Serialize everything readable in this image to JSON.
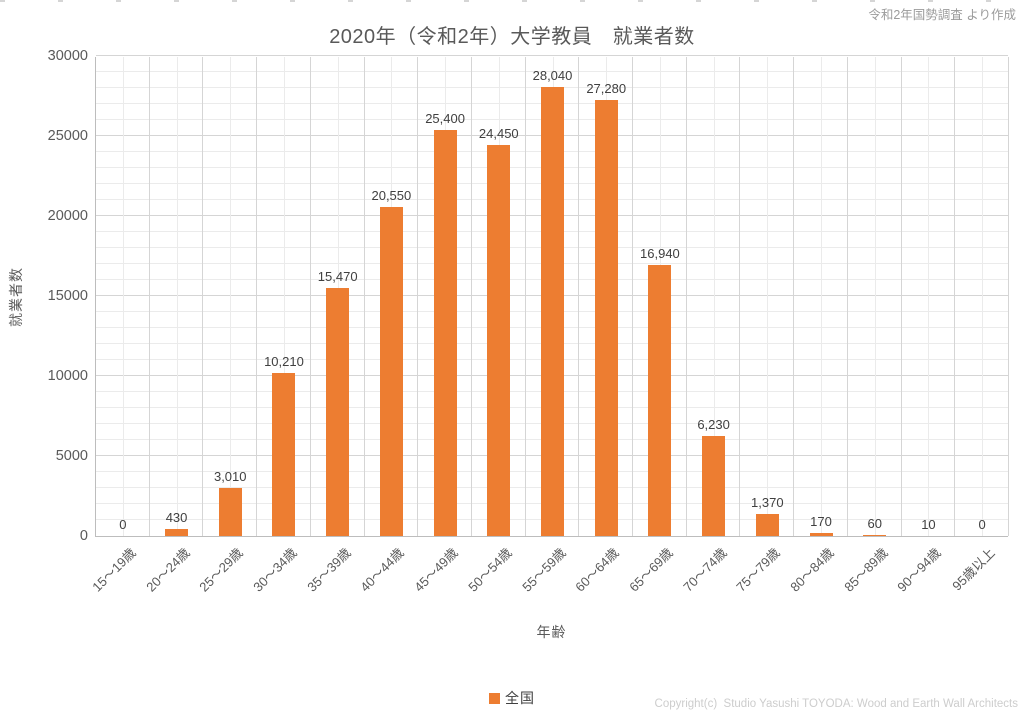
{
  "page": {
    "source_note": "令和2年国勢調査 より作成",
    "copyright": "Copyright(c)  Studio Yasushi TOYODA: Wood and Earth Wall Architects"
  },
  "chart_data": {
    "type": "bar",
    "title": "2020年（令和2年）大学教員　就業者数",
    "xlabel": "年齢",
    "ylabel": "就業者数",
    "legend": {
      "position": "bottom-center",
      "series_label": "全国"
    },
    "categories": [
      "15～19歳",
      "20～24歳",
      "25～29歳",
      "30～34歳",
      "35～39歳",
      "40～44歳",
      "45～49歳",
      "50～54歳",
      "55～59歳",
      "60～64歳",
      "65～69歳",
      "70～74歳",
      "75～79歳",
      "80～84歳",
      "85～89歳",
      "90～94歳",
      "95歳以上"
    ],
    "values": [
      0,
      430,
      3010,
      10210,
      15470,
      20550,
      25400,
      24450,
      28040,
      27280,
      16940,
      6230,
      1370,
      170,
      60,
      10,
      0
    ],
    "value_labels": [
      "0",
      "430",
      "3,010",
      "10,210",
      "15,470",
      "20,550",
      "25,400",
      "24,450",
      "28,040",
      "27,280",
      "16,940",
      "6,230",
      "1,370",
      "170",
      "60",
      "10",
      "0"
    ],
    "ylim": [
      0,
      30000
    ],
    "y_major_unit": 5000,
    "y_minor_unit": 1000,
    "y_tick_labels": [
      "0",
      "5000",
      "10000",
      "15000",
      "20000",
      "25000",
      "30000"
    ],
    "grid": "horizontal and vertical, major + minor",
    "colors": {
      "bar": "#ED7D31",
      "grid_major": "#D5D5D5",
      "grid_minor": "#EBEBEB",
      "axis_line": "#BDBDBD",
      "title_text": "#595959",
      "axis_text": "#595959",
      "data_label_text": "#404040",
      "note_text": "#9B9B9B",
      "copyright_text": "#CDCDCD"
    }
  }
}
